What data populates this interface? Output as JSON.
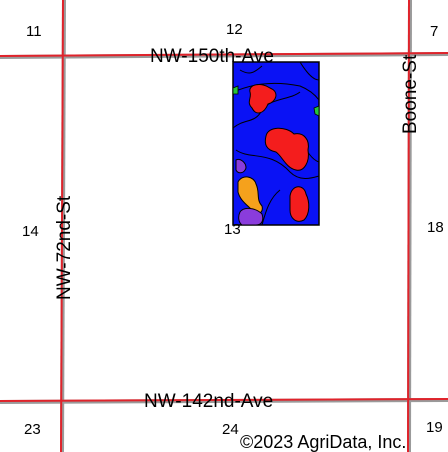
{
  "roads": {
    "nw150": "NW-150th-Ave",
    "nw142": "NW-142nd-Ave",
    "nw72": "NW-72nd-St",
    "boone": "Boone-St"
  },
  "sections": {
    "s11": "11",
    "s12": "12",
    "s7": "7",
    "s14": "14",
    "s13": "13",
    "s18": "18",
    "s23": "23",
    "s24": "24",
    "s19": "19"
  },
  "copyright": "©2023 AgriData, Inc.",
  "colors": {
    "road": "#e0232b",
    "road_shadow": "#9a9a9a",
    "field_base": "#0a12f5",
    "field_red": "#f41d1d",
    "field_orange": "#f5a11c",
    "field_purple": "#8a3cdc",
    "field_green": "#26c43a"
  }
}
